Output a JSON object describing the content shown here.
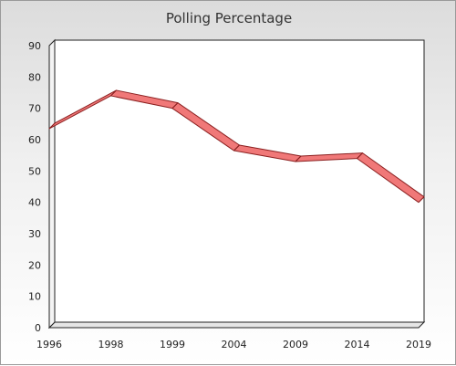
{
  "chart_data": {
    "type": "line",
    "title": "Polling Percentage",
    "xlabel": "",
    "ylabel": "",
    "categories": [
      "1996",
      "1998",
      "1999",
      "2004",
      "2009",
      "2014",
      "2019"
    ],
    "series": [
      {
        "values": [
          63.5,
          74.0,
          70.0,
          56.5,
          53.0,
          54.0,
          40.0
        ]
      }
    ],
    "ylim": [
      0,
      90
    ],
    "yticks": [
      0,
      10,
      20,
      30,
      40,
      50,
      60,
      70,
      80,
      90
    ],
    "grid": false,
    "legend": "none",
    "style": "3d-ribbon",
    "colors": {
      "line_fill": "#f07878",
      "line_edge": "#8b2020",
      "wall": "#ffffff"
    }
  }
}
